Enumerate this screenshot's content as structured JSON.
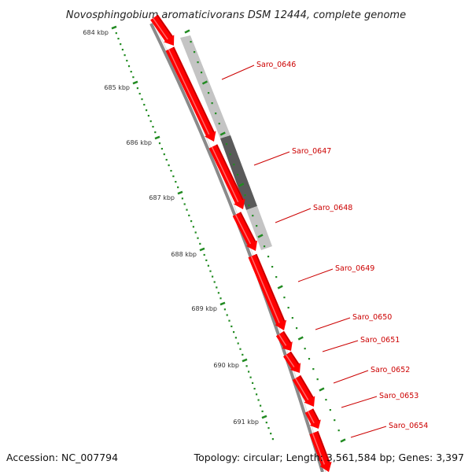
{
  "title": "Novosphingobium aromaticivorans DSM 12444, complete genome",
  "accession": "Accession: NC_007794",
  "summary": "Topology: circular; Length: 3,561,584 bp; Genes: 3,397",
  "ticks": [
    "684 kbp",
    "685 kbp",
    "686 kbp",
    "687 kbp",
    "688 kbp",
    "689 kbp",
    "690 kbp",
    "691 kbp"
  ],
  "genes": [
    "Saro_0646",
    "Saro_0647",
    "Saro_0648",
    "Saro_0649",
    "Saro_0650",
    "Saro_0651",
    "Saro_0652",
    "Saro_0653",
    "Saro_0654"
  ],
  "colors": {
    "gene": "#ff0000",
    "gene_shade": "#b00000",
    "backbone": "#8a8a8a",
    "ruler": "#228b22",
    "label": "#cc0000",
    "analysis_light": "#bdbdbd",
    "analysis_dark": "#555555"
  }
}
